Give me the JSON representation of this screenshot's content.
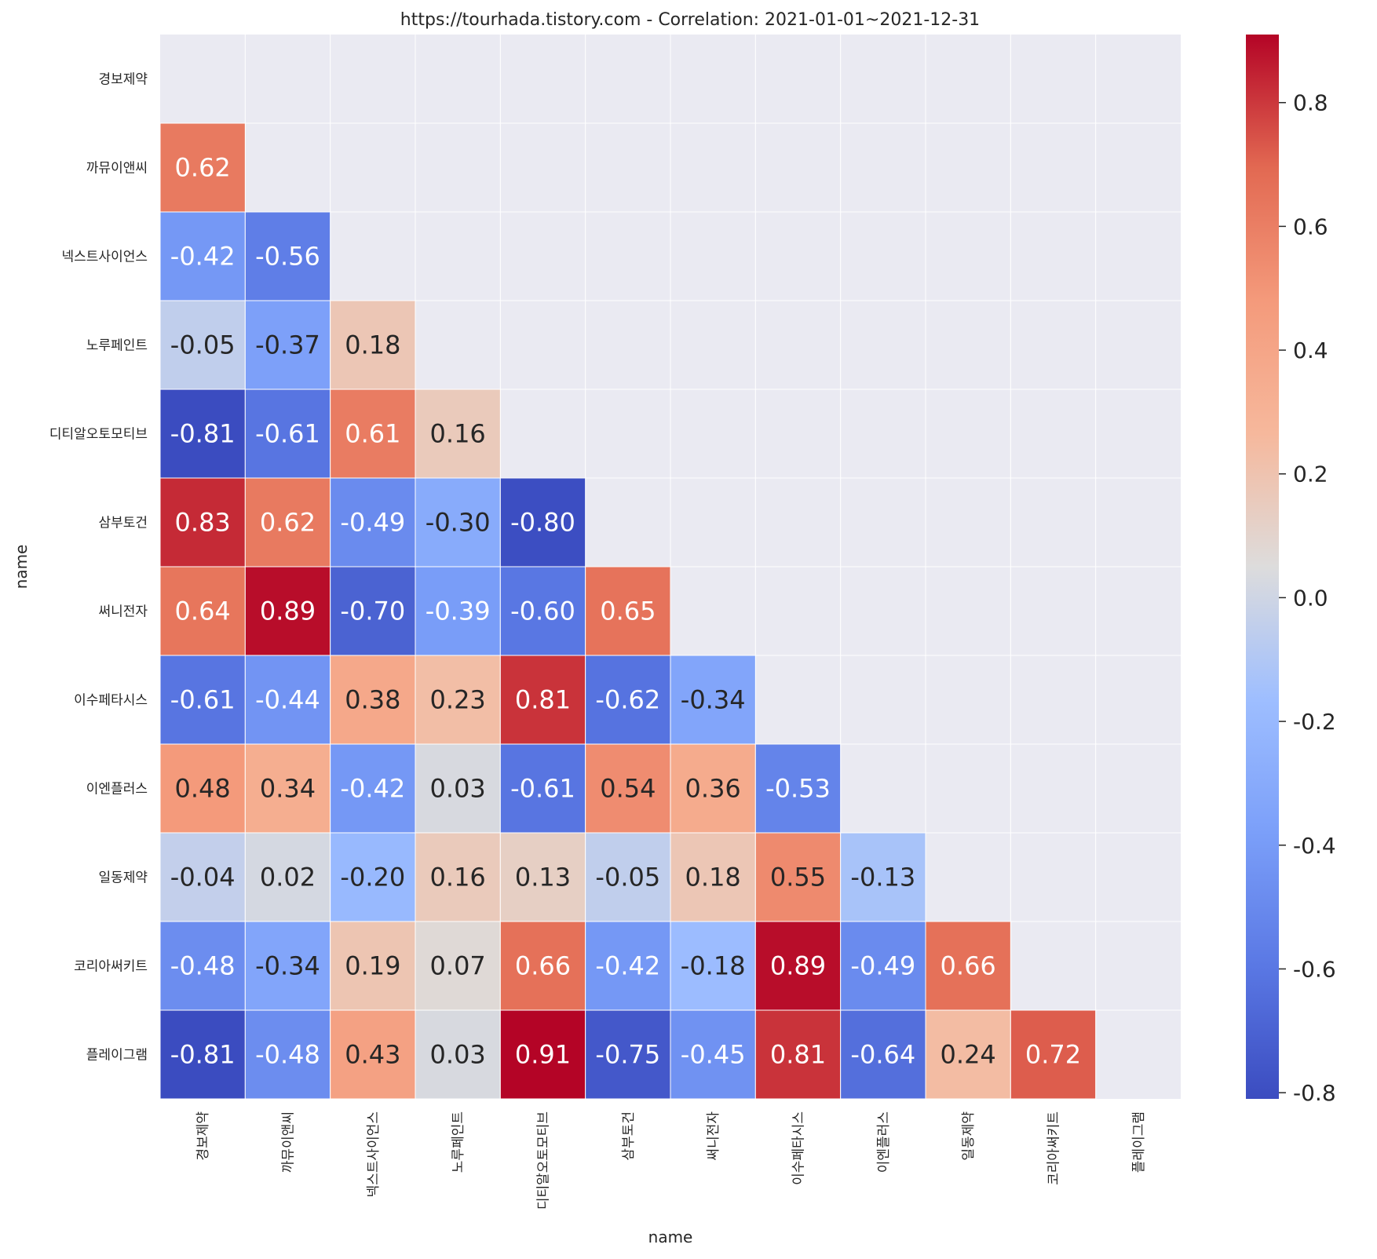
{
  "chart_data": {
    "type": "heatmap",
    "title": "https://tourhada.tistory.com - Correlation: 2021-01-01~2021-12-31",
    "xlabel": "name",
    "ylabel": "name",
    "labels": [
      "경보제약",
      "까뮤이앤씨",
      "넥스트사이언스",
      "노루페인트",
      "디티알오토모티브",
      "삼부토건",
      "써니전자",
      "이수페타시스",
      "이엔플러스",
      "일동제약",
      "코리아써키트",
      "플레이그램"
    ],
    "matrix": [
      [
        null,
        null,
        null,
        null,
        null,
        null,
        null,
        null,
        null,
        null,
        null,
        null
      ],
      [
        0.62,
        null,
        null,
        null,
        null,
        null,
        null,
        null,
        null,
        null,
        null,
        null
      ],
      [
        -0.42,
        -0.56,
        null,
        null,
        null,
        null,
        null,
        null,
        null,
        null,
        null,
        null
      ],
      [
        -0.05,
        -0.37,
        0.18,
        null,
        null,
        null,
        null,
        null,
        null,
        null,
        null,
        null
      ],
      [
        -0.81,
        -0.61,
        0.61,
        0.16,
        null,
        null,
        null,
        null,
        null,
        null,
        null,
        null
      ],
      [
        0.83,
        0.62,
        -0.49,
        -0.3,
        -0.8,
        null,
        null,
        null,
        null,
        null,
        null,
        null
      ],
      [
        0.64,
        0.89,
        -0.7,
        -0.39,
        -0.6,
        0.65,
        null,
        null,
        null,
        null,
        null,
        null
      ],
      [
        -0.61,
        -0.44,
        0.38,
        0.23,
        0.81,
        -0.62,
        -0.34,
        null,
        null,
        null,
        null,
        null
      ],
      [
        0.48,
        0.34,
        -0.42,
        0.03,
        -0.61,
        0.54,
        0.36,
        -0.53,
        null,
        null,
        null,
        null
      ],
      [
        -0.04,
        0.02,
        -0.2,
        0.16,
        0.13,
        -0.05,
        0.18,
        0.55,
        -0.13,
        null,
        null,
        null
      ],
      [
        -0.48,
        -0.34,
        0.19,
        0.07,
        0.66,
        -0.42,
        -0.18,
        0.89,
        -0.49,
        0.66,
        null,
        null
      ],
      [
        -0.81,
        -0.48,
        0.43,
        0.03,
        0.91,
        -0.75,
        -0.45,
        0.81,
        -0.64,
        0.24,
        0.72,
        null
      ]
    ],
    "colormap": "coolwarm",
    "vmin": -0.81,
    "vmax": 0.91,
    "colorbar_ticks": [
      0.8,
      0.6,
      0.4,
      0.2,
      0.0,
      -0.2,
      -0.4,
      -0.6,
      -0.8
    ],
    "colorbar_tick_labels": [
      "0.8",
      "0.6",
      "0.4",
      "0.2",
      "0.0",
      "-0.2",
      "-0.4",
      "-0.6",
      "-0.8"
    ],
    "mask": "upper-triangle-including-diagonal",
    "colors": {
      "masked_background": "#eaeaf2",
      "grid_line": "#ffffff",
      "text_dark": "#262626"
    }
  }
}
